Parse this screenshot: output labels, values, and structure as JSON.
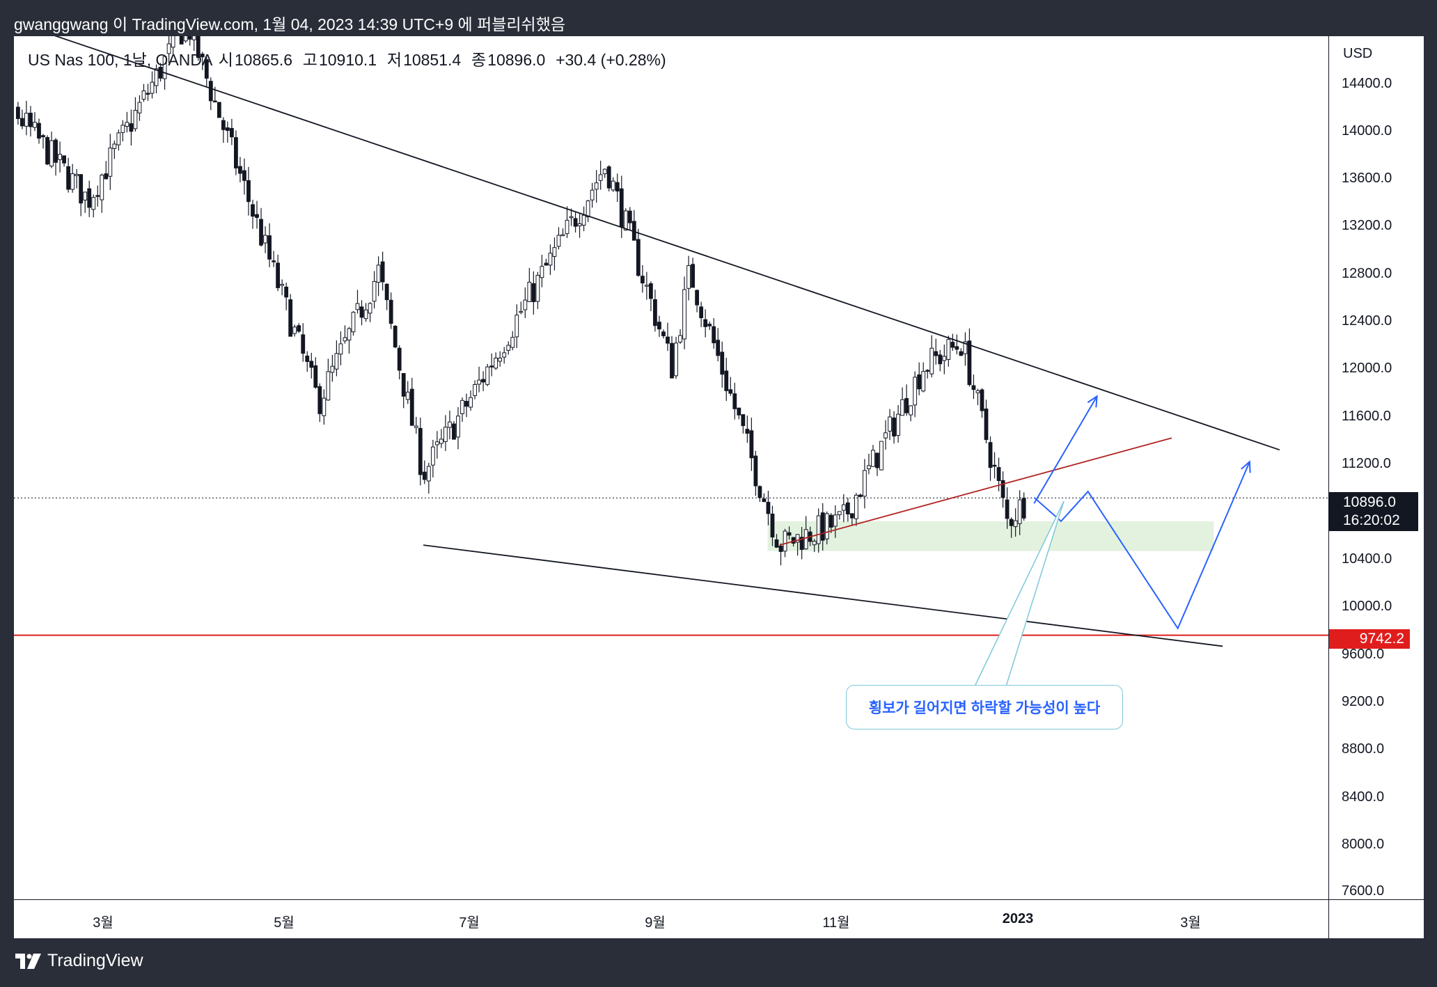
{
  "header": {
    "publish_info": "gwanggwang 이 TradingView.com, 1월 04, 2023 14:39 UTC+9 에 퍼블리쉬했음"
  },
  "symbol": {
    "name": "US Nas 100, 1날, OANDA",
    "open_label": "시",
    "open": "10865.6",
    "high_label": "고",
    "high": "10910.1",
    "low_label": "저",
    "low": "10851.4",
    "close_label": "종",
    "close": "10896.0",
    "change": "+30.4 (+0.28%)"
  },
  "price_axis": {
    "currency": "USD",
    "ticks": [
      "14400.0",
      "14000.0",
      "13600.0",
      "13200.0",
      "12800.0",
      "12400.0",
      "12000.0",
      "11600.0",
      "11200.0",
      "10400.0",
      "10000.0",
      "9600.0",
      "9200.0",
      "8800.0",
      "8400.0",
      "8000.0",
      "7600.0"
    ],
    "last_price": "10896.0",
    "countdown": "16:20:02",
    "level_label": "9742.2"
  },
  "time_axis": {
    "ticks": [
      "3월",
      "5월",
      "7월",
      "9월",
      "11월",
      "2023",
      "3월"
    ]
  },
  "annotation": {
    "text": "횡보가 길어지면 하락할 가능성이 높다"
  },
  "footer": {
    "brand": "TradingView"
  },
  "colors": {
    "background": "#2a2e39",
    "chart_bg": "#ffffff",
    "candle": "#131722",
    "support_line": "#e01d1d",
    "projection": "#2962ff",
    "zone": "#e2f2df",
    "callout_border": "#7ec8d8"
  },
  "chart_data": {
    "type": "candlestick",
    "symbol": "US Nas 100",
    "interval": "1날",
    "ylim": [
      7600,
      14700
    ],
    "y_ticks": [
      14400,
      14000,
      13600,
      13200,
      12800,
      12400,
      12000,
      11600,
      11200,
      10400,
      10000,
      9600,
      9200,
      8800,
      8400,
      8000,
      7600
    ],
    "x_ticks": [
      "3월",
      "5월",
      "7월",
      "9월",
      "11월",
      "2023",
      "3월"
    ],
    "last": {
      "open": 10865.6,
      "high": 10910.1,
      "low": 10851.4,
      "close": 10896.0,
      "change": 30.4,
      "change_pct": 0.28
    },
    "horizontal_level": 9742.2,
    "price_path": [
      {
        "date": "2022-01-12",
        "close": 14700
      },
      {
        "date": "2022-02-24",
        "close": 13400
      },
      {
        "date": "2022-03-29",
        "close": 14900
      },
      {
        "date": "2022-05-12",
        "close": 11700
      },
      {
        "date": "2022-06-01",
        "close": 12800
      },
      {
        "date": "2022-06-16",
        "close": 11100
      },
      {
        "date": "2022-07-01",
        "close": 11700
      },
      {
        "date": "2022-08-16",
        "close": 13700
      },
      {
        "date": "2022-09-07",
        "close": 12000
      },
      {
        "date": "2022-09-13",
        "close": 12800
      },
      {
        "date": "2022-10-13",
        "close": 10500
      },
      {
        "date": "2022-11-03",
        "close": 10700
      },
      {
        "date": "2022-11-30",
        "close": 12000
      },
      {
        "date": "2022-12-13",
        "close": 12200
      },
      {
        "date": "2022-12-28",
        "close": 10700
      },
      {
        "date": "2023-01-04",
        "close": 10896
      }
    ],
    "drawings": [
      {
        "kind": "trendline",
        "name": "upper-wedge-line",
        "points": [
          {
            "date": "2022-01-18",
            "price": 15000
          },
          {
            "date": "2023-03-29",
            "price": 11300
          }
        ]
      },
      {
        "kind": "trendline",
        "name": "lower-wedge-line",
        "points": [
          {
            "date": "2022-06-16",
            "price": 10500
          },
          {
            "date": "2023-03-10",
            "price": 9650
          }
        ]
      },
      {
        "kind": "trendline",
        "name": "rising-support-line",
        "points": [
          {
            "date": "2022-10-13",
            "price": 10500
          },
          {
            "date": "2023-02-21",
            "price": 11400
          }
        ]
      },
      {
        "kind": "zone",
        "name": "support-zone",
        "from": "2022-10-09",
        "to": "2023-03-07",
        "price_low": 10450,
        "price_high": 10700
      },
      {
        "kind": "path",
        "name": "bullish-projection",
        "points": [
          {
            "date": "2023-01-06",
            "price": 10850
          },
          {
            "date": "2023-01-27",
            "price": 11750
          }
        ]
      },
      {
        "kind": "path",
        "name": "bearish-projection",
        "points": [
          {
            "date": "2023-01-06",
            "price": 10900
          },
          {
            "date": "2023-01-15",
            "price": 10700
          },
          {
            "date": "2023-01-24",
            "price": 10950
          },
          {
            "date": "2023-02-23",
            "price": 9800
          },
          {
            "date": "2023-03-19",
            "price": 11200
          }
        ]
      }
    ]
  }
}
